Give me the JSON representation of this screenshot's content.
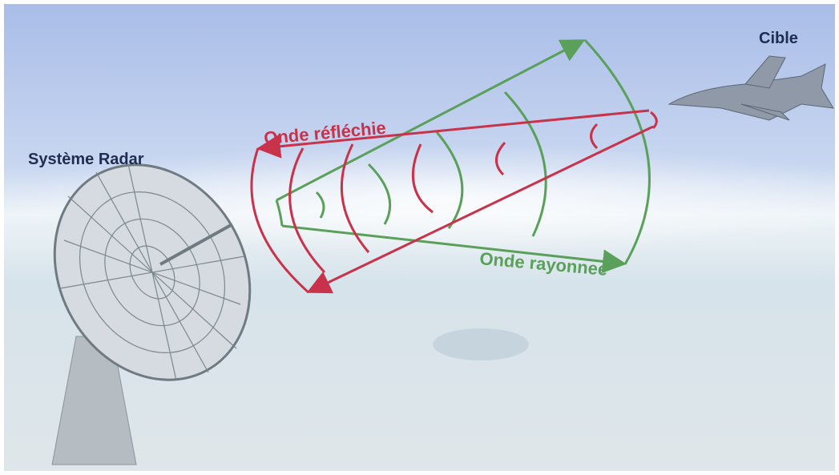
{
  "labels": {
    "radar": "Système Radar",
    "target": "Cible",
    "reflected": "Onde réfléchie",
    "radiated": "Onde rayonnee"
  }
}
